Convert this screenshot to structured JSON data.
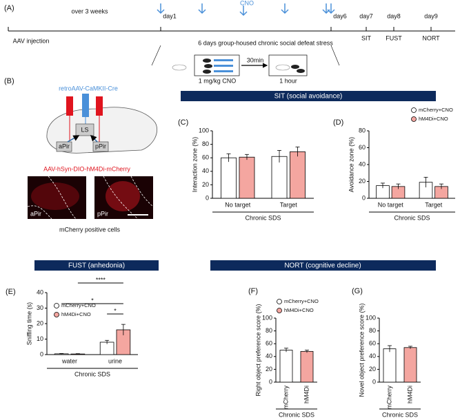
{
  "panel_labels": [
    "(A)",
    "(B)",
    "(C)",
    "(D)",
    "(E)",
    "(F)",
    "(G)"
  ],
  "timeline": {
    "start": "AAV injection",
    "interval": "over 3 weeks",
    "drug": "CNO",
    "days": [
      "day1",
      "day6",
      "day7",
      "day8",
      "day9"
    ],
    "tests": [
      "SIT",
      "FUST",
      "NORT"
    ],
    "stress": "6 days group-housed chronic social defeat stress",
    "dose": "1 mg/kg CNO",
    "wait": "30min",
    "duration": "1 hour"
  },
  "diagram": {
    "virus1": "retroAAV-CaMKII-Cre",
    "virus2": "AAV-hSyn-DIO-hM4Di-mCherry",
    "regions": [
      "LS",
      "aPir",
      "pPir"
    ],
    "images": [
      "aPir",
      "pPir"
    ],
    "caption": "mCherry positive cells"
  },
  "sections": [
    "SIT (social avoidance)",
    "FUST (anhedonia)",
    "NORT (cognitive decline)"
  ],
  "chart_data": [
    {
      "type": "bar",
      "categories": [
        "No target",
        "Target"
      ],
      "xlabel": "Chronic SDS",
      "ylabel": "Interaction zone (%)",
      "series": [
        {
          "name": "mCherry+CNO",
          "color": "#ffffff",
          "values": [
            60,
            62
          ],
          "errors": [
            6,
            9
          ]
        },
        {
          "name": "hM4Di+CNO",
          "color": "#f4a6a0",
          "values": [
            61,
            69
          ],
          "errors": [
            4,
            7
          ]
        }
      ],
      "ylim": [
        0,
        100
      ],
      "yticks": [
        0,
        20,
        40,
        60,
        80,
        100
      ]
    },
    {
      "type": "bar",
      "categories": [
        "No target",
        "Target"
      ],
      "xlabel": "Chronic SDS",
      "ylabel": "Avoidance zone (%)",
      "series": [
        {
          "name": "mCherry+CNO",
          "color": "#ffffff",
          "values": [
            15,
            19
          ],
          "errors": [
            3,
            6
          ]
        },
        {
          "name": "hM4Di+CNO",
          "color": "#f4a6a0",
          "values": [
            14,
            14
          ],
          "errors": [
            3,
            3
          ]
        }
      ],
      "ylim": [
        0,
        80
      ],
      "yticks": [
        0,
        20,
        40,
        60,
        80
      ],
      "legend": "upper right"
    },
    {
      "type": "bar",
      "categories": [
        "water",
        "urine"
      ],
      "xlabel": "Chronic SDS",
      "ylabel": "Sniffing time (s)",
      "series": [
        {
          "name": "mCherry+CNO",
          "color": "#ffffff",
          "values": [
            0.5,
            8
          ],
          "errors": [
            0.2,
            1.2
          ]
        },
        {
          "name": "hM4Di+CNO",
          "color": "#f4a6a0",
          "values": [
            0.4,
            16
          ],
          "errors": [
            0.2,
            3.5
          ]
        }
      ],
      "ylim": [
        0,
        40
      ],
      "yticks": [
        0,
        10,
        20,
        30,
        40
      ],
      "legend": "upper left",
      "annotations": [
        "*",
        "****",
        "*"
      ]
    },
    {
      "type": "bar",
      "categories": [
        "mCherry",
        "hM4Di"
      ],
      "xlabel": "Chronic SDS",
      "ylabel": "Right object preference score (%)",
      "values": [
        50,
        48
      ],
      "errors": [
        3,
        2
      ],
      "colors": [
        "#ffffff",
        "#f4a6a0"
      ],
      "legend_labels": [
        "mCherry+CNO",
        "hM4Di+CNO"
      ],
      "ylim": [
        0,
        100
      ],
      "yticks": [
        0,
        20,
        40,
        60,
        80,
        100
      ]
    },
    {
      "type": "bar",
      "categories": [
        "mCherry",
        "hM4Di"
      ],
      "xlabel": "Chronic SDS",
      "ylabel": "Novel object preference score (%)",
      "values": [
        52,
        54
      ],
      "errors": [
        5,
        2
      ],
      "colors": [
        "#ffffff",
        "#f4a6a0"
      ],
      "ylim": [
        0,
        100
      ],
      "yticks": [
        0,
        20,
        40,
        60,
        80,
        100
      ]
    }
  ]
}
